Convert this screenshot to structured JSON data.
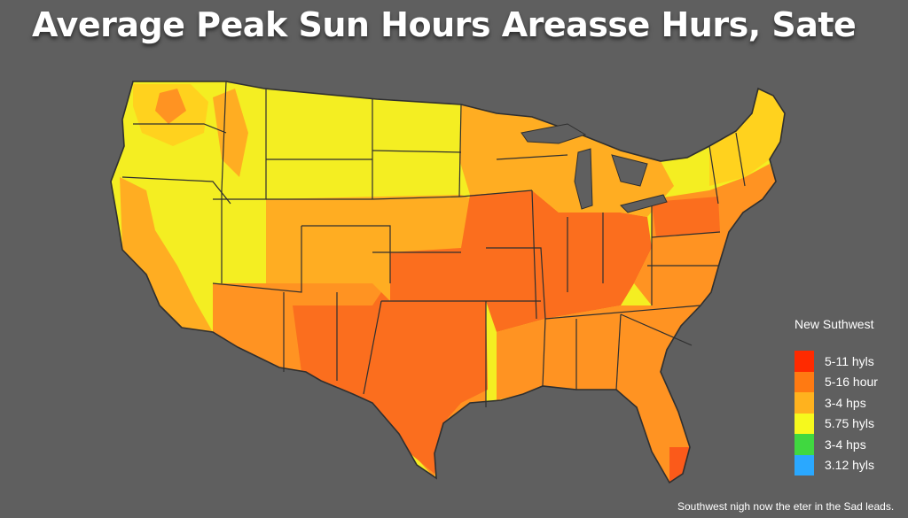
{
  "title": "Average Peak Sun Hours Areasse Hurs, Sate",
  "legend": {
    "title": "New Suthwest",
    "items": [
      {
        "label": "5-11 hyls",
        "color": "#ff2a00"
      },
      {
        "label": "5-16 hour",
        "color": "#ff7a12"
      },
      {
        "label": "3-4 hps",
        "color": "#ffb21e"
      },
      {
        "label": "5.75 hyls",
        "color": "#f6f91d"
      },
      {
        "label": "3-4 hps",
        "color": "#40d840"
      },
      {
        "label": "3.12 hyls",
        "color": "#2aa8ff"
      }
    ]
  },
  "caption": "Southwest nigh now the eter in the Sad leads.",
  "colors": {
    "background": "#5f5f5f",
    "yellow": "#f4ee22",
    "yellow_orange": "#ffd21e",
    "light_orange": "#ffad22",
    "orange": "#ff9322",
    "deep_orange": "#fb6e1e",
    "border": "#2f2f2f"
  }
}
